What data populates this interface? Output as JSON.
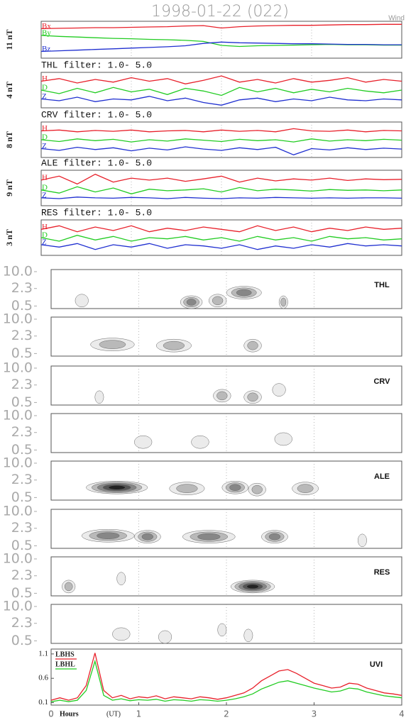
{
  "chart_data": [
    {
      "type": "line",
      "title": "1998-01-22 (022)",
      "annotation": "Wind",
      "ylabel": "11 nT",
      "xlim": [
        0,
        4
      ],
      "ylim": [
        0,
        11
      ],
      "xticks": [
        1,
        2,
        3
      ],
      "grid": true,
      "x": [
        0,
        0.2,
        0.4,
        0.6,
        0.8,
        1.0,
        1.2,
        1.4,
        1.6,
        1.8,
        2.0,
        2.2,
        2.4,
        2.6,
        2.8,
        3.0,
        3.2,
        3.4,
        3.6,
        3.8,
        4.0
      ],
      "series": [
        {
          "name": "Bx",
          "color": "#e8202a",
          "values": [
            8.8,
            8.9,
            9.0,
            9.1,
            9.1,
            9.2,
            9.3,
            9.4,
            9.6,
            9.7,
            9.0,
            9.4,
            9.6,
            9.7,
            9.8,
            9.8,
            9.9,
            10.0,
            10.0,
            10.1,
            10.1
          ]
        },
        {
          "name": "By",
          "color": "#22cc22",
          "values": [
            6.8,
            6.5,
            6.3,
            6.1,
            5.9,
            5.8,
            5.6,
            5.5,
            5.3,
            5.0,
            3.8,
            3.5,
            3.7,
            3.8,
            3.9,
            4.0,
            4.1,
            4.0,
            4.0,
            3.9,
            3.9
          ]
        },
        {
          "name": "Bz",
          "color": "#1f2fd0",
          "values": [
            2.0,
            2.2,
            2.4,
            2.6,
            2.8,
            3.0,
            3.2,
            3.4,
            3.7,
            4.4,
            4.8,
            4.6,
            4.5,
            4.4,
            4.3,
            4.3,
            4.2,
            4.1,
            4.1,
            4.0,
            4.0
          ]
        }
      ]
    },
    {
      "type": "line",
      "title": "THL filter: 1.0- 5.0",
      "ylabel": "4 nT",
      "xlim": [
        0,
        4
      ],
      "ylim": [
        0,
        4
      ],
      "xticks": [
        1,
        2,
        3
      ],
      "grid": true,
      "x": [
        0,
        0.2,
        0.4,
        0.6,
        0.8,
        1.0,
        1.2,
        1.4,
        1.6,
        1.8,
        2.0,
        2.2,
        2.4,
        2.6,
        2.8,
        3.0,
        3.2,
        3.4,
        3.6,
        3.8,
        4.0
      ],
      "series": [
        {
          "name": "H",
          "color": "#e8202a",
          "values": [
            3.0,
            3.3,
            2.8,
            3.2,
            2.9,
            3.4,
            3.0,
            3.3,
            2.7,
            3.1,
            3.6,
            2.9,
            3.2,
            2.8,
            3.3,
            2.9,
            3.1,
            3.4,
            2.9,
            3.2,
            3.0
          ]
        },
        {
          "name": "D",
          "color": "#22cc22",
          "values": [
            2.0,
            1.6,
            2.2,
            1.7,
            2.3,
            1.8,
            2.1,
            1.5,
            2.2,
            1.9,
            1.4,
            2.3,
            1.8,
            2.2,
            1.7,
            2.1,
            1.8,
            2.2,
            1.9,
            1.7,
            2.0
          ]
        },
        {
          "name": "Z",
          "color": "#1f2fd0",
          "values": [
            1.0,
            0.8,
            1.2,
            0.7,
            1.0,
            0.9,
            1.3,
            0.8,
            1.1,
            0.6,
            0.3,
            0.9,
            1.1,
            0.7,
            1.0,
            0.8,
            1.2,
            0.9,
            0.8,
            1.0,
            0.9
          ]
        }
      ]
    },
    {
      "type": "line",
      "title": "CRV filter: 1.0- 5.0",
      "ylabel": "8 nT",
      "xlim": [
        0,
        4
      ],
      "ylim": [
        0,
        8
      ],
      "xticks": [
        1,
        2,
        3
      ],
      "grid": true,
      "x": [
        0,
        0.2,
        0.4,
        0.6,
        0.8,
        1.0,
        1.2,
        1.4,
        1.6,
        1.8,
        2.0,
        2.2,
        2.4,
        2.6,
        2.8,
        3.0,
        3.2,
        3.4,
        3.6,
        3.8,
        4.0
      ],
      "series": [
        {
          "name": "H",
          "color": "#e8202a",
          "values": [
            6.0,
            6.2,
            5.8,
            6.1,
            5.9,
            6.2,
            5.8,
            6.0,
            6.1,
            5.8,
            6.2,
            5.9,
            6.1,
            5.8,
            6.5,
            6.0,
            5.9,
            6.2,
            5.8,
            6.1,
            6.0
          ]
        },
        {
          "name": "D",
          "color": "#22cc22",
          "values": [
            4.0,
            3.6,
            4.2,
            3.8,
            4.1,
            3.5,
            4.0,
            3.7,
            4.2,
            3.9,
            3.6,
            4.1,
            3.8,
            4.0,
            3.5,
            4.2,
            3.7,
            4.0,
            3.8,
            4.1,
            3.9
          ]
        },
        {
          "name": "Z",
          "color": "#1f2fd0",
          "values": [
            2.0,
            1.6,
            2.3,
            1.8,
            2.2,
            1.5,
            2.1,
            1.7,
            2.4,
            1.9,
            1.6,
            2.2,
            1.8,
            2.3,
            0.6,
            2.0,
            1.7,
            2.2,
            1.8,
            2.1,
            1.9
          ]
        }
      ]
    },
    {
      "type": "line",
      "title": "ALE filter: 1.0- 5.0",
      "ylabel": "9 nT",
      "xlim": [
        0,
        4
      ],
      "ylim": [
        0,
        9
      ],
      "xticks": [
        1,
        2,
        3
      ],
      "grid": true,
      "x": [
        0,
        0.2,
        0.4,
        0.6,
        0.8,
        1.0,
        1.2,
        1.4,
        1.6,
        1.8,
        2.0,
        2.2,
        2.4,
        2.6,
        2.8,
        3.0,
        3.2,
        3.4,
        3.6,
        3.8,
        4.0
      ],
      "series": [
        {
          "name": "H",
          "color": "#e8202a",
          "values": [
            6.5,
            7.5,
            5.5,
            8.0,
            6.0,
            7.0,
            6.5,
            7.0,
            6.2,
            6.8,
            7.5,
            6.0,
            7.0,
            6.3,
            6.8,
            6.5,
            7.0,
            6.4,
            6.8,
            6.6,
            6.7
          ]
        },
        {
          "name": "D",
          "color": "#22cc22",
          "values": [
            4.0,
            3.2,
            4.8,
            3.5,
            4.5,
            3.0,
            4.2,
            3.8,
            4.0,
            4.3,
            3.5,
            4.6,
            3.8,
            4.2,
            4.0,
            3.7,
            4.1,
            3.9,
            4.0,
            3.8,
            4.0
          ]
        },
        {
          "name": "Z",
          "color": "#1f2fd0",
          "values": [
            2.0,
            1.8,
            2.2,
            2.0,
            1.9,
            2.1,
            2.0,
            1.8,
            2.1,
            1.9,
            1.8,
            2.0,
            1.9,
            2.1,
            2.0,
            1.9,
            2.0,
            1.9,
            2.0,
            2.0,
            1.9
          ]
        }
      ]
    },
    {
      "type": "line",
      "title": "RES filter: 1.0- 5.0",
      "ylabel": "3 nT",
      "xlim": [
        0,
        4
      ],
      "ylim": [
        0,
        3
      ],
      "xticks": [
        1,
        2,
        3
      ],
      "grid": true,
      "x": [
        0,
        0.2,
        0.4,
        0.6,
        0.8,
        1.0,
        1.2,
        1.4,
        1.6,
        1.8,
        2.0,
        2.2,
        2.4,
        2.6,
        2.8,
        3.0,
        3.2,
        3.4,
        3.6,
        3.8,
        4.0
      ],
      "series": [
        {
          "name": "H",
          "color": "#e8202a",
          "values": [
            2.2,
            2.5,
            2.0,
            2.4,
            2.1,
            2.5,
            2.0,
            2.3,
            2.1,
            2.4,
            2.2,
            2.0,
            2.5,
            2.1,
            2.4,
            2.0,
            2.3,
            2.1,
            2.4,
            2.2,
            2.3
          ]
        },
        {
          "name": "D",
          "color": "#22cc22",
          "values": [
            1.5,
            1.2,
            1.7,
            1.3,
            1.6,
            1.2,
            1.5,
            1.4,
            1.6,
            1.3,
            1.5,
            1.2,
            1.6,
            1.3,
            1.5,
            1.2,
            1.6,
            1.4,
            1.5,
            1.3,
            1.4
          ]
        },
        {
          "name": "Z",
          "color": "#1f2fd0",
          "values": [
            0.9,
            0.7,
            1.0,
            0.5,
            0.9,
            0.7,
            1.0,
            0.6,
            0.9,
            0.8,
            0.6,
            0.9,
            0.5,
            0.8,
            0.6,
            0.9,
            0.7,
            1.0,
            0.8,
            0.9,
            0.8
          ]
        }
      ]
    },
    {
      "type": "contour",
      "label": "THL",
      "xlim": [
        0,
        4
      ],
      "ylim": [
        0.4,
        12
      ],
      "log_y": true,
      "xticks": [
        1,
        2,
        3
      ],
      "grid": true,
      "yticks": [
        {
          "value": 10,
          "label": "10.0"
        },
        2.3,
        0.5
      ],
      "spots": {
        "x": [
          0.35,
          1.6,
          1.9,
          2.2,
          2.65
        ],
        "y": [
          0.8,
          0.7,
          0.8,
          1.6,
          0.7
        ],
        "values": [
          1,
          3,
          2,
          3,
          2
        ],
        "widths": [
          0.15,
          0.25,
          0.2,
          0.4,
          0.1
        ]
      }
    },
    {
      "type": "contour",
      "xlim": [
        0,
        4
      ],
      "ylim": [
        0.4,
        12
      ],
      "log_y": true,
      "xticks": [
        1,
        2,
        3
      ],
      "grid": true,
      "yticks": [
        {
          "value": 10,
          "label": "10.0"
        },
        2.3,
        0.5
      ],
      "spots": {
        "x": [
          0.7,
          1.4,
          2.3
        ],
        "y": [
          1.1,
          1.0,
          1.0
        ],
        "values": [
          2,
          2,
          2
        ],
        "widths": [
          0.5,
          0.4,
          0.2
        ]
      }
    },
    {
      "type": "contour",
      "label": "CRV",
      "xlim": [
        0,
        4
      ],
      "ylim": [
        0.4,
        12
      ],
      "log_y": true,
      "xticks": [
        1,
        2,
        3
      ],
      "grid": true,
      "yticks": [
        {
          "value": 10,
          "label": "10.0"
        },
        2.3,
        0.5
      ],
      "spots": {
        "x": [
          0.55,
          1.95,
          2.3,
          2.6
        ],
        "y": [
          0.8,
          0.9,
          0.8,
          1.5
        ],
        "values": [
          1,
          2,
          2,
          1
        ],
        "widths": [
          0.1,
          0.2,
          0.2,
          0.15
        ]
      }
    },
    {
      "type": "contour",
      "xlim": [
        0,
        4
      ],
      "ylim": [
        0.4,
        12
      ],
      "log_y": true,
      "xticks": [
        1,
        2,
        3
      ],
      "grid": true,
      "yticks": [
        {
          "value": 10,
          "label": "10.0"
        },
        2.3,
        0.5
      ],
      "spots": {
        "x": [
          1.05,
          1.7,
          2.65
        ],
        "y": [
          1.0,
          1.0,
          1.3
        ],
        "values": [
          1,
          1,
          1
        ],
        "widths": [
          0.2,
          0.2,
          0.2
        ]
      }
    },
    {
      "type": "contour",
      "label": "ALE",
      "xlim": [
        0,
        4
      ],
      "ylim": [
        0.4,
        12
      ],
      "log_y": true,
      "xticks": [
        1,
        2,
        3
      ],
      "grid": true,
      "yticks": [
        {
          "value": 10,
          "label": "10.0"
        },
        2.3,
        0.5
      ],
      "spots": {
        "x": [
          0.75,
          1.55,
          2.1,
          2.35,
          2.9
        ],
        "y": [
          1.2,
          1.1,
          1.2,
          1.0,
          1.1
        ],
        "values": [
          5,
          2,
          3,
          2,
          2
        ],
        "widths": [
          0.7,
          0.4,
          0.3,
          0.2,
          0.3
        ]
      }
    },
    {
      "type": "contour",
      "xlim": [
        0,
        4
      ],
      "ylim": [
        0.4,
        12
      ],
      "log_y": true,
      "xticks": [
        1,
        2,
        3
      ],
      "grid": true,
      "yticks": [
        {
          "value": 10,
          "label": "10.0"
        },
        2.3,
        0.5
      ],
      "spots": {
        "x": [
          0.65,
          1.1,
          1.8,
          2.55,
          3.55
        ],
        "y": [
          1.2,
          1.1,
          1.1,
          1.1,
          0.8
        ],
        "values": [
          3,
          3,
          3,
          3,
          1
        ],
        "widths": [
          0.6,
          0.3,
          0.6,
          0.3,
          0.1
        ]
      }
    },
    {
      "type": "contour",
      "label": "RES",
      "xlim": [
        0,
        4
      ],
      "ylim": [
        0.4,
        12
      ],
      "log_y": true,
      "xticks": [
        1,
        2,
        3
      ],
      "grid": true,
      "yticks": [
        {
          "value": 10,
          "label": "10.0"
        },
        2.3,
        0.5
      ],
      "spots": {
        "x": [
          0.2,
          2.3,
          0.8
        ],
        "y": [
          0.9,
          0.9,
          1.8
        ],
        "values": [
          2,
          5,
          1
        ],
        "widths": [
          0.15,
          0.5,
          0.1
        ]
      }
    },
    {
      "type": "contour",
      "xlim": [
        0,
        4
      ],
      "ylim": [
        0.4,
        12
      ],
      "log_y": true,
      "xticks": [
        1,
        2,
        3
      ],
      "grid": true,
      "yticks": [
        {
          "value": 10,
          "label": "10.0"
        },
        2.3,
        0.5
      ],
      "spots": {
        "x": [
          0.8,
          1.3,
          1.95,
          2.25
        ],
        "y": [
          0.9,
          0.7,
          1.3,
          0.8
        ],
        "values": [
          1,
          1,
          1,
          1
        ],
        "widths": [
          0.2,
          0.15,
          0.1,
          0.1
        ]
      }
    },
    {
      "type": "line",
      "label": "UVI",
      "legend": "upper left",
      "xlim": [
        0,
        4
      ],
      "ylim": [
        0.05,
        1.2
      ],
      "yticks": [
        1.1,
        0.6,
        0.1
      ],
      "xticks": [
        0,
        1,
        2,
        3,
        4
      ],
      "xtick_labels": true,
      "xlabel": "Hours",
      "xlabel_unit": "(UT)",
      "x": [
        0,
        0.1,
        0.2,
        0.3,
        0.4,
        0.5,
        0.6,
        0.7,
        0.8,
        0.9,
        1.0,
        1.1,
        1.2,
        1.3,
        1.4,
        1.5,
        1.6,
        1.7,
        1.8,
        1.9,
        2.0,
        2.1,
        2.2,
        2.3,
        2.4,
        2.5,
        2.6,
        2.7,
        2.8,
        2.9,
        3.0,
        3.1,
        3.2,
        3.3,
        3.4,
        3.5,
        3.6,
        3.7,
        3.8,
        3.9,
        4.0
      ],
      "series": [
        {
          "name": "LBHS",
          "color": "#e8202a",
          "values": [
            0.15,
            0.2,
            0.15,
            0.2,
            0.45,
            1.12,
            0.35,
            0.2,
            0.25,
            0.18,
            0.22,
            0.2,
            0.24,
            0.18,
            0.22,
            0.2,
            0.18,
            0.22,
            0.2,
            0.17,
            0.2,
            0.25,
            0.3,
            0.4,
            0.55,
            0.65,
            0.75,
            0.78,
            0.7,
            0.6,
            0.5,
            0.45,
            0.4,
            0.42,
            0.5,
            0.48,
            0.4,
            0.35,
            0.3,
            0.28,
            0.25
          ]
        },
        {
          "name": "LBHL",
          "color": "#22cc22",
          "values": [
            0.12,
            0.15,
            0.12,
            0.15,
            0.35,
            0.95,
            0.25,
            0.15,
            0.18,
            0.14,
            0.16,
            0.15,
            0.17,
            0.13,
            0.16,
            0.15,
            0.13,
            0.16,
            0.15,
            0.13,
            0.15,
            0.18,
            0.22,
            0.28,
            0.38,
            0.45,
            0.52,
            0.55,
            0.5,
            0.45,
            0.4,
            0.36,
            0.32,
            0.34,
            0.4,
            0.38,
            0.32,
            0.28,
            0.24,
            0.22,
            0.2
          ]
        }
      ]
    }
  ]
}
